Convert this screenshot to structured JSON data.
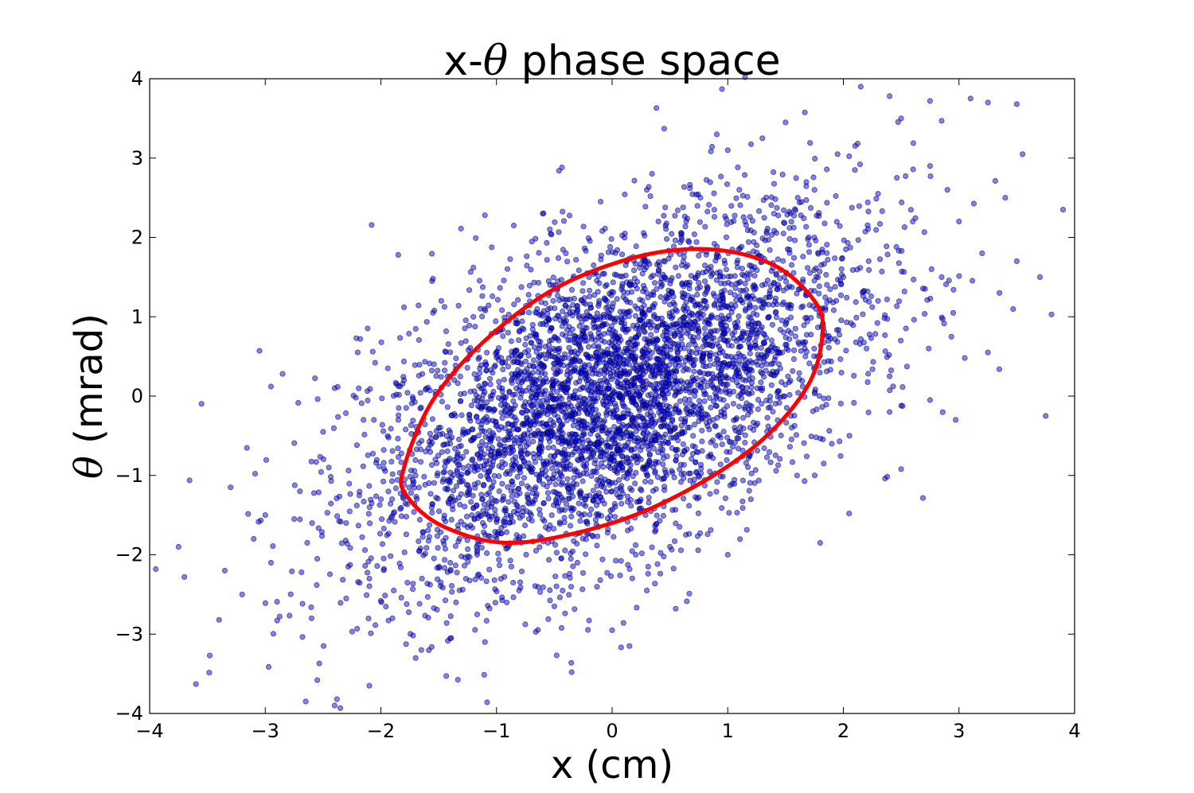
{
  "chart_data": {
    "type": "scatter",
    "title": {
      "prefix": "x-",
      "symbol": "θ",
      "suffix": " phase space"
    },
    "xlabel": "x (cm)",
    "ylabel": {
      "symbol": "θ",
      "suffix": " (mrad)"
    },
    "xlim": [
      -4,
      4
    ],
    "ylim": [
      -4,
      4
    ],
    "xticks": [
      -4,
      -3,
      -2,
      -1,
      0,
      1,
      2,
      3,
      4
    ],
    "yticks": [
      -4,
      -3,
      -2,
      -1,
      0,
      1,
      2,
      3,
      4
    ],
    "xtick_labels": [
      "−4",
      "−3",
      "−2",
      "−1",
      "0",
      "1",
      "2",
      "3",
      "4"
    ],
    "ytick_labels": [
      "−4",
      "−3",
      "−2",
      "−1",
      "0",
      "1",
      "2",
      "3",
      "4"
    ],
    "grid": false,
    "series": [
      {
        "kind": "scatter",
        "color": "#0000ff",
        "edge_color": "#000000",
        "opacity": 0.5,
        "points": [
          [
            -3.6,
            -3.63
          ],
          [
            -3.48,
            -3.27
          ],
          [
            -3.75,
            -1.9
          ],
          [
            -3.7,
            -2.28
          ],
          [
            -3.4,
            -2.82
          ],
          [
            -3.3,
            -1.15
          ],
          [
            -3.2,
            -2.5
          ],
          [
            -3.0,
            -1.5
          ],
          [
            -2.95,
            -2.1
          ],
          [
            -2.65,
            -3.85
          ],
          [
            -2.4,
            -3.9
          ],
          [
            -2.55,
            -3.58
          ],
          [
            -2.1,
            -3.65
          ],
          [
            -2.75,
            -1.55
          ],
          [
            -3.05,
            0.57
          ],
          [
            -2.95,
            0.12
          ],
          [
            -2.85,
            0.28
          ],
          [
            -2.5,
            -0.45
          ],
          [
            -2.4,
            0.1
          ],
          [
            -2.2,
            0.55
          ],
          [
            -2.05,
            0.42
          ],
          [
            -1.8,
            1.12
          ],
          [
            -1.55,
            1.48
          ],
          [
            -1.55,
            1.05
          ],
          [
            -1.1,
            2.28
          ],
          [
            -0.85,
            2.15
          ],
          [
            -0.6,
            2.3
          ],
          [
            -0.1,
            2.45
          ],
          [
            0.3,
            2.6
          ],
          [
            0.45,
            3.37
          ],
          [
            1.0,
            3.1
          ],
          [
            1.3,
            3.25
          ],
          [
            1.5,
            3.45
          ],
          [
            1.95,
            3.05
          ],
          [
            2.15,
            3.9
          ],
          [
            2.4,
            3.78
          ],
          [
            2.5,
            3.5
          ],
          [
            2.75,
            3.72
          ],
          [
            2.85,
            3.47
          ],
          [
            3.1,
            3.75
          ],
          [
            3.25,
            3.7
          ],
          [
            3.5,
            3.68
          ],
          [
            3.55,
            3.05
          ],
          [
            3.9,
            2.35
          ],
          [
            3.8,
            1.03
          ],
          [
            3.7,
            1.5
          ],
          [
            3.5,
            1.7
          ],
          [
            3.25,
            0.55
          ],
          [
            3.05,
            0.48
          ],
          [
            3.75,
            -0.25
          ],
          [
            3.35,
            1.3
          ],
          [
            2.95,
            1.05
          ],
          [
            2.75,
            -0.05
          ],
          [
            2.5,
            -0.92
          ],
          [
            2.4,
            0.25
          ],
          [
            2.3,
            2.55
          ],
          [
            2.6,
            2.2
          ],
          [
            2.9,
            2.6
          ],
          [
            1.15,
            2.2
          ],
          [
            0.95,
            3.87
          ],
          [
            1.15,
            4.02
          ],
          [
            0.0,
            -2.95
          ],
          [
            -0.35,
            -3.48
          ],
          [
            0.15,
            -3.15
          ],
          [
            0.55,
            -2.68
          ],
          [
            -1.1,
            -3.1
          ],
          [
            -1.65,
            -3.2
          ],
          [
            -2.3,
            -2.55
          ],
          [
            -2.55,
            -2.05
          ],
          [
            -1.85,
            1.78
          ],
          [
            -1.2,
            1.62
          ],
          [
            2.05,
            -1.48
          ],
          [
            1.8,
            -1.85
          ],
          [
            1.0,
            -2.0
          ],
          [
            0.3,
            -2.45
          ],
          [
            -0.5,
            -2.65
          ],
          [
            -1.4,
            -2.1
          ],
          [
            -2.0,
            -1.3
          ],
          [
            -1.5,
            -0.4
          ],
          [
            -0.9,
            0.8
          ],
          [
            -0.2,
            1.5
          ],
          [
            0.6,
            2.0
          ],
          [
            1.4,
            2.3
          ],
          [
            2.0,
            1.5
          ],
          [
            2.2,
            0.6
          ],
          [
            1.9,
            -0.6
          ],
          [
            1.2,
            -1.3
          ],
          [
            0.5,
            -1.9
          ],
          [
            -0.3,
            -2.1
          ],
          [
            -1.0,
            -1.8
          ],
          [
            -1.7,
            -1.0
          ],
          [
            -1.8,
            0.2
          ],
          [
            -1.2,
            1.0
          ],
          [
            -0.4,
            1.8
          ],
          [
            0.4,
            2.2
          ],
          [
            1.1,
            2.6
          ],
          [
            1.7,
            2.0
          ],
          [
            2.3,
            1.2
          ],
          [
            2.4,
            -0.2
          ],
          [
            1.6,
            -1.0
          ],
          [
            -2.3,
            -1.6
          ],
          [
            -2.7,
            -1.2
          ],
          [
            -3.1,
            -1.8
          ],
          [
            -3.35,
            -2.2
          ],
          [
            -2.6,
            -2.8
          ],
          [
            -2.1,
            -2.3
          ],
          [
            -1.9,
            -2.8
          ],
          [
            -1.35,
            -2.6
          ],
          [
            -2.45,
            -0.9
          ],
          [
            -2.15,
            -0.3
          ],
          [
            2.75,
            2.9
          ],
          [
            3.0,
            2.2
          ],
          [
            3.2,
            1.8
          ],
          [
            2.85,
            1.5
          ],
          [
            3.4,
            2.5
          ],
          [
            2.1,
            2.85
          ],
          [
            1.75,
            2.6
          ],
          [
            1.25,
            1.9
          ],
          [
            0.8,
            1.2
          ],
          [
            0.2,
            0.6
          ],
          [
            -0.4,
            -0.2
          ],
          [
            -0.8,
            -0.9
          ],
          [
            -0.2,
            -0.7
          ],
          [
            0.5,
            0.1
          ],
          [
            1.0,
            0.5
          ],
          [
            1.5,
            0.9
          ],
          [
            1.3,
            0.1
          ],
          [
            0.7,
            -0.5
          ],
          [
            0.0,
            -1.2
          ],
          [
            -0.7,
            -1.5
          ]
        ]
      },
      {
        "kind": "ellipse",
        "color": "#ff0000",
        "center": [
          0,
          0
        ],
        "points": [
          [
            -1.8,
            -0.9
          ],
          [
            -1.55,
            -0.05
          ],
          [
            -1.1,
            0.7
          ],
          [
            -0.5,
            1.35
          ],
          [
            0.2,
            1.75
          ],
          [
            0.85,
            1.85
          ],
          [
            1.4,
            1.65
          ],
          [
            1.75,
            1.2
          ],
          [
            1.82,
            0.8
          ],
          [
            1.7,
            0.15
          ],
          [
            1.3,
            -0.55
          ],
          [
            0.7,
            -1.15
          ],
          [
            0.0,
            -1.6
          ],
          [
            -0.85,
            -1.85
          ],
          [
            -1.45,
            -1.65
          ],
          [
            -1.78,
            -1.25
          ],
          [
            -1.8,
            -0.9
          ]
        ]
      }
    ]
  }
}
